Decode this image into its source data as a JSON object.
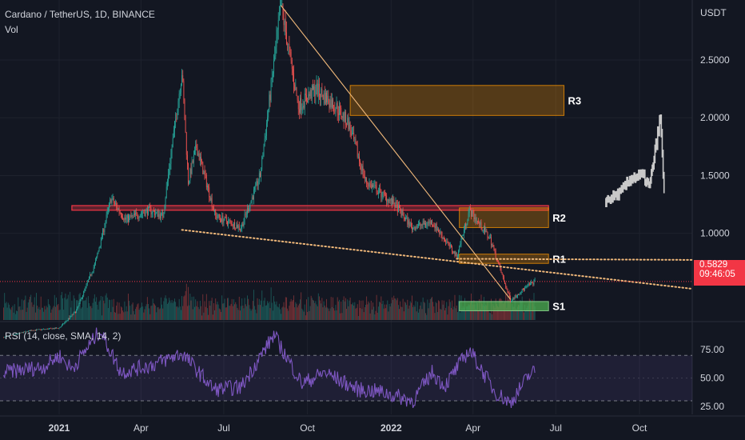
{
  "header": {
    "symbol_line": "Cardano / TetherUS, 1D, BINANCE",
    "volume_label": "Vol",
    "rsi_label": "RSI (14, close, SMA, 14, 2)"
  },
  "price_tag": {
    "price": "0.5829",
    "countdown": "09:46:05"
  },
  "colors": {
    "background": "#131722",
    "up": "#26a69a",
    "down": "#ef5350",
    "rsi_line": "#7e57c2",
    "trend_line": "#f0b87a",
    "resistance": "#ff9800",
    "support": "#4caf50"
  },
  "chart_data": [
    {
      "type": "candlestick",
      "title": "Cardano / TetherUS, 1D, BINANCE",
      "ylabel": "USDT",
      "ylim": [
        0.25,
        2.95
      ],
      "y_ticks": [
        "2.5000",
        "2.0000",
        "1.5000",
        "1.0000"
      ],
      "x_ticks": [
        "2021",
        "Apr",
        "Jul",
        "Oct",
        "2022",
        "Apr",
        "Jul",
        "Oct"
      ],
      "x_range": [
        "2020-10-28",
        "2022-11-28"
      ],
      "last_price": 0.5829,
      "price_path": [
        {
          "date": "2020-11-01",
          "price": 0.1
        },
        {
          "date": "2020-12-01",
          "price": 0.16
        },
        {
          "date": "2021-01-01",
          "price": 0.18
        },
        {
          "date": "2021-01-20",
          "price": 0.33
        },
        {
          "date": "2021-02-10",
          "price": 0.75
        },
        {
          "date": "2021-02-27",
          "price": 1.3
        },
        {
          "date": "2021-03-15",
          "price": 1.12
        },
        {
          "date": "2021-04-10",
          "price": 1.2
        },
        {
          "date": "2021-04-25",
          "price": 1.15
        },
        {
          "date": "2021-05-16",
          "price": 2.4
        },
        {
          "date": "2021-05-23",
          "price": 1.45
        },
        {
          "date": "2021-06-01",
          "price": 1.75
        },
        {
          "date": "2021-06-22",
          "price": 1.15
        },
        {
          "date": "2021-07-20",
          "price": 1.05
        },
        {
          "date": "2021-08-10",
          "price": 1.5
        },
        {
          "date": "2021-09-02",
          "price": 2.97
        },
        {
          "date": "2021-09-21",
          "price": 2.1
        },
        {
          "date": "2021-10-10",
          "price": 2.25
        },
        {
          "date": "2021-11-01",
          "price": 2.1
        },
        {
          "date": "2021-11-15",
          "price": 1.95
        },
        {
          "date": "2021-12-04",
          "price": 1.45
        },
        {
          "date": "2022-01-05",
          "price": 1.25
        },
        {
          "date": "2022-01-24",
          "price": 1.05
        },
        {
          "date": "2022-02-15",
          "price": 1.1
        },
        {
          "date": "2022-03-14",
          "price": 0.8
        },
        {
          "date": "2022-03-28",
          "price": 1.2
        },
        {
          "date": "2022-04-20",
          "price": 0.95
        },
        {
          "date": "2022-05-12",
          "price": 0.42
        },
        {
          "date": "2022-06-01",
          "price": 0.55
        },
        {
          "date": "2022-06-08",
          "price": 0.5829
        }
      ],
      "projection_path": [
        {
          "date": "2022-08-25",
          "price": 1.28
        },
        {
          "date": "2022-09-10",
          "price": 1.35
        },
        {
          "date": "2022-09-22",
          "price": 1.48
        },
        {
          "date": "2022-10-05",
          "price": 1.5
        },
        {
          "date": "2022-10-12",
          "price": 1.4
        },
        {
          "date": "2022-10-20",
          "price": 1.8
        },
        {
          "date": "2022-10-24",
          "price": 2.0
        },
        {
          "date": "2022-10-28",
          "price": 1.35
        }
      ],
      "zones": [
        {
          "label": "R3",
          "from": "2021-11-17",
          "to": "2022-07-10",
          "low": 2.02,
          "high": 2.28,
          "color": "#ff9800"
        },
        {
          "label": "R2",
          "from": "2022-03-17",
          "to": "2022-06-23",
          "low": 1.05,
          "high": 1.22,
          "color": "#ff9800"
        },
        {
          "label": "R1",
          "from": "2022-03-17",
          "to": "2022-06-23",
          "low": 0.74,
          "high": 0.82,
          "color": "#ff9800"
        },
        {
          "label": "S1",
          "from": "2022-03-17",
          "to": "2022-06-23",
          "low": 0.33,
          "high": 0.41,
          "color": "#4caf50"
        }
      ],
      "horizontal_line": {
        "from": "2021-01-15",
        "to": "2022-06-23",
        "low": 1.2,
        "high": 1.24,
        "color": "#f23645"
      },
      "trend_lines": [
        {
          "style": "solid",
          "from": {
            "date": "2021-09-02",
            "price": 2.97
          },
          "to": {
            "date": "2022-05-12",
            "price": 0.43
          }
        },
        {
          "style": "dotted",
          "from": {
            "date": "2021-05-16",
            "price": 1.03
          },
          "to": {
            "date": "2022-11-28",
            "price": 0.52
          }
        },
        {
          "style": "dotted",
          "from": {
            "date": "2022-03-14",
            "price": 0.78
          },
          "to": {
            "date": "2022-11-28",
            "price": 0.77
          }
        }
      ]
    },
    {
      "type": "line",
      "title": "RSI (14, close, SMA, 14, 2)",
      "ylim": [
        18,
        97
      ],
      "y_ticks": [
        "75.00",
        "50.00",
        "25.00"
      ],
      "bands": [
        70,
        30
      ],
      "path": [
        {
          "date": "2020-11-01",
          "value": 55
        },
        {
          "date": "2020-12-15",
          "value": 60
        },
        {
          "date": "2021-01-01",
          "value": 70
        },
        {
          "date": "2021-01-15",
          "value": 58
        },
        {
          "date": "2021-02-15",
          "value": 92
        },
        {
          "date": "2021-03-10",
          "value": 55
        },
        {
          "date": "2021-04-15",
          "value": 62
        },
        {
          "date": "2021-05-16",
          "value": 72
        },
        {
          "date": "2021-06-20",
          "value": 40
        },
        {
          "date": "2021-07-20",
          "value": 42
        },
        {
          "date": "2021-08-25",
          "value": 88
        },
        {
          "date": "2021-09-25",
          "value": 45
        },
        {
          "date": "2021-10-20",
          "value": 55
        },
        {
          "date": "2021-11-25",
          "value": 40
        },
        {
          "date": "2021-12-20",
          "value": 38
        },
        {
          "date": "2022-01-25",
          "value": 30
        },
        {
          "date": "2022-02-15",
          "value": 55
        },
        {
          "date": "2022-03-01",
          "value": 43
        },
        {
          "date": "2022-03-28",
          "value": 75
        },
        {
          "date": "2022-04-25",
          "value": 38
        },
        {
          "date": "2022-05-12",
          "value": 28
        },
        {
          "date": "2022-06-01",
          "value": 52
        },
        {
          "date": "2022-06-08",
          "value": 56
        }
      ]
    }
  ]
}
